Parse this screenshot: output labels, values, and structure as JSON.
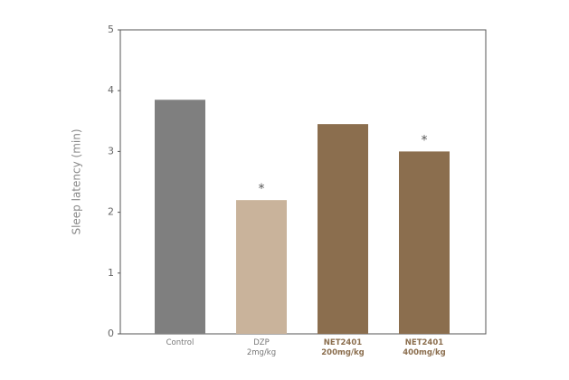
{
  "chart_data": {
    "type": "bar",
    "y_label": "Sleep latency (min)",
    "categories": [
      "Control",
      "DZP\n2mg/kg",
      "NET2401\n200mg/kg",
      "NET2401\n400mg/kg"
    ],
    "values": [
      3.85,
      2.2,
      3.45,
      3.0
    ],
    "colors": [
      "#7f7f7f",
      "#c9b39b",
      "#8b6e4e",
      "#8b6e4e"
    ],
    "significance": [
      null,
      "*",
      null,
      "*"
    ],
    "ylim": [
      0,
      5
    ],
    "yticks": [
      0,
      1,
      2,
      3,
      4,
      5
    ],
    "grid": false
  }
}
